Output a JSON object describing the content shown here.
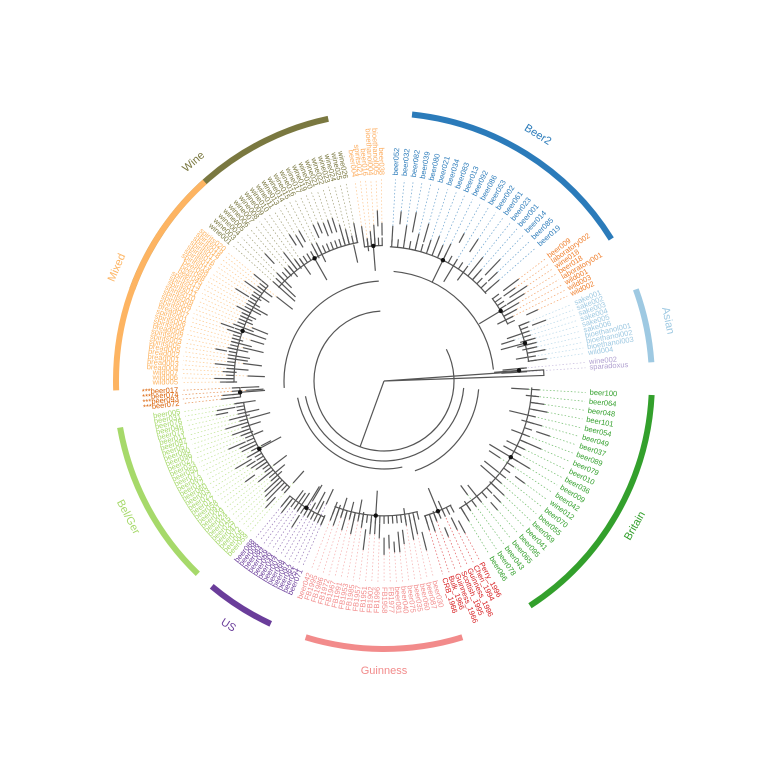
{
  "clades": [
    {
      "key": "wine",
      "label": "Wine",
      "color": "#7a7840"
    },
    {
      "key": "beer2",
      "label": "Beer2",
      "color": "#2b7bba"
    },
    {
      "key": "asian",
      "label": "Asian",
      "color": "#9ec9e2"
    },
    {
      "key": "britain",
      "label": "Britain",
      "color": "#33a02c"
    },
    {
      "key": "guinness",
      "label": "Guinness",
      "color": "#f28b8b"
    },
    {
      "key": "us",
      "label": "US",
      "color": "#6a3d9a"
    },
    {
      "key": "belger",
      "label": "Bel/Ger",
      "color": "#a6d96a"
    },
    {
      "key": "mixed",
      "label": "Mixed",
      "color": "#fdb462"
    }
  ],
  "leaves": {
    "beer2": [
      "beer052",
      "beer032",
      "beer082",
      "beer039",
      "beer080",
      "beer021",
      "beer034",
      "beer083",
      "beer013",
      "beer092",
      "beer086",
      "beer053",
      "beer002",
      "beer061",
      "beer023",
      "beer001",
      "beer014",
      "beer085",
      "beer019"
    ],
    "mixed_top": [
      "beer009",
      "laboratory002",
      "wine018",
      "beer018",
      "laboratory001",
      "wild001",
      "wild003",
      "wild002"
    ],
    "asian": [
      "sake001",
      "sake002",
      "sake003",
      "sake004",
      "sake005",
      "sake006",
      "bioethanol001",
      "bioethanol002",
      "bioethanol003",
      "wild004"
    ],
    "special": [
      "wine002",
      "sparadoxus"
    ],
    "britain": [
      "beer100",
      "beer064",
      "beer048",
      "beer101",
      "beer054",
      "beer049",
      "beer037",
      "beer089",
      "beer079",
      "beer010",
      "beer036",
      "beer009",
      "beer042",
      "wine012",
      "beer070",
      "beer055",
      "beer069",
      "beer041",
      "beer095",
      "beer065",
      "beer043",
      "beer078",
      "beer066"
    ],
    "guinness_red": [
      "Perry_1996",
      "Cheri_1994",
      "Guinness_1996",
      "Scottish_1995",
      "Guinness_1966",
      "Bulk_1966",
      "CRB_1966"
    ],
    "guinness": [
      "beer030",
      "beer087",
      "beer060",
      "beer035",
      "beer075",
      "beer040",
      "beer081",
      "FB1977",
      "FB1958",
      "FB1996",
      "FB1902",
      "FB1951",
      "FB1957",
      "FB1985",
      "FB1953",
      "FB1991",
      "FB1967",
      "FB1972",
      "FB1986",
      "FB1995",
      "beer042"
    ],
    "us": [
      "beer071",
      "beer051",
      "beer062",
      "beer067",
      "beer068",
      "beer007",
      "beer044",
      "beer096",
      "beer026",
      "beer084",
      "beer008",
      "beer088"
    ],
    "belger": [
      "beer059",
      "beer006",
      "beer072",
      "beer047",
      "beer025",
      "beer015",
      "beer024",
      "beer029",
      "beer091",
      "beer058",
      "beer017",
      "beer022",
      "beer003",
      "beer060",
      "beer012",
      "beer063",
      "beer077",
      "beer050",
      "beer033",
      "beer027",
      "beer096",
      "beer090",
      "beer057",
      "beer097",
      "beer011",
      "beer073",
      "beer046",
      "beer076",
      "beer031",
      "beer005"
    ],
    "mixed_low": [
      "***beer072",
      "***beer093",
      "***beer074",
      "***beer017"
    ],
    "mixed": [
      "wild005",
      "wild006",
      "wild007",
      "bread004",
      "bread003",
      "bread001",
      "bread002",
      "bread005",
      "spirits005",
      "spirits003",
      "spirits002",
      "bread006",
      "spirits004",
      "spirits006",
      "spirits001",
      "bread007",
      "spirits007",
      "spirits008",
      "spirits009",
      "spirits010",
      "spirits011",
      "spirits012",
      "spirits013",
      "beer045",
      "beer098",
      "beer099",
      "spirits014",
      "spirits015",
      "spirits016",
      "spirits017",
      "spirits018",
      "spirits019",
      "spirits020"
    ],
    "wine": [
      "wine001",
      "wine003",
      "wine004",
      "wine005",
      "wine006",
      "wine007",
      "wine008",
      "wine009",
      "wine010",
      "wine011",
      "wine013",
      "wine014",
      "wine015",
      "wine016",
      "wine017",
      "wine019",
      "wine020",
      "wine021",
      "wine022",
      "wine023",
      "wine024",
      "wine025",
      "wine026"
    ],
    "mixed_wine": [
      "beer004",
      "spirits021",
      "beer016",
      "bioethanol004",
      "bioethanol005",
      "beer038"
    ]
  }
}
